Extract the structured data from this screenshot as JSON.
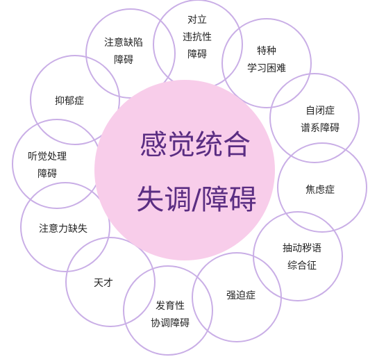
{
  "colors": {
    "center_fill": "#f8cdea",
    "ring_stroke": "#c9aee6",
    "center_text": "#5a2d82",
    "node_text": "#222222"
  },
  "center": {
    "line1": "感觉统合",
    "line2": "失调/障碍"
  },
  "nodes": [
    {
      "id": "oppositional-defiant",
      "lines": [
        "对立",
        "违抗性",
        "障碍"
      ]
    },
    {
      "id": "specific-learning",
      "lines": [
        "特种",
        "学习困难"
      ]
    },
    {
      "id": "autism-spectrum",
      "lines": [
        "自闭症",
        "谱系障碍"
      ]
    },
    {
      "id": "anxiety",
      "lines": [
        "焦虑症"
      ]
    },
    {
      "id": "tourette",
      "lines": [
        "抽动秽语",
        "综合征"
      ]
    },
    {
      "id": "ocd",
      "lines": [
        "强迫症"
      ]
    },
    {
      "id": "developmental-coordination",
      "lines": [
        "发育性",
        "协调障碍"
      ]
    },
    {
      "id": "gifted",
      "lines": [
        "天才"
      ]
    },
    {
      "id": "attention-deficit",
      "lines": [
        "注意力缺失"
      ]
    },
    {
      "id": "auditory-processing",
      "lines": [
        "听觉处理",
        "障碍"
      ]
    },
    {
      "id": "depression",
      "lines": [
        "抑郁症"
      ]
    },
    {
      "id": "attention-deficit-disorder",
      "lines": [
        "注意缺陷",
        "障碍"
      ]
    }
  ]
}
